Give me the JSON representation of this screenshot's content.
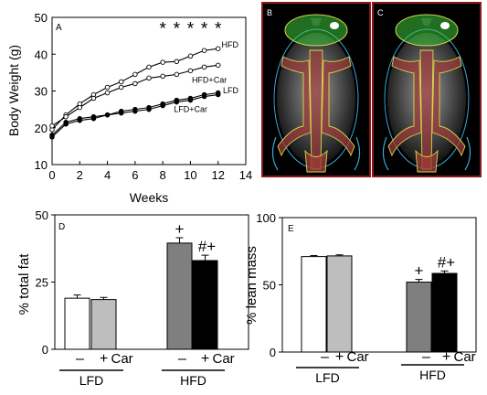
{
  "chart_data": [
    {
      "panel": "A",
      "type": "line",
      "xlabel": "Weeks",
      "ylabel": "Body Weight (g)",
      "xlim": [
        0,
        14
      ],
      "ylim": [
        10,
        50
      ],
      "xticks": [
        0,
        2,
        4,
        6,
        8,
        10,
        12,
        14
      ],
      "yticks": [
        10,
        20,
        30,
        40,
        50
      ],
      "x": [
        0,
        1,
        2,
        3,
        4,
        5,
        6,
        7,
        8,
        9,
        10,
        11,
        12
      ],
      "series": [
        {
          "name": "HFD",
          "marker": "open-circle",
          "values": [
            19.5,
            23.5,
            26.5,
            29,
            31,
            32.5,
            34.5,
            36.5,
            37.8,
            38,
            39.5,
            41,
            41.5
          ]
        },
        {
          "name": "HFD+Car",
          "marker": "open-circle",
          "values": [
            20.5,
            23,
            25.5,
            28,
            29.5,
            31,
            32,
            33.5,
            34,
            34.5,
            35.5,
            36.5,
            37
          ]
        },
        {
          "name": "LFD",
          "marker": "filled-circle",
          "values": [
            18,
            21.5,
            22.5,
            23,
            23.5,
            24.5,
            25,
            25.5,
            26.5,
            27.5,
            28,
            29,
            29.5
          ]
        },
        {
          "name": "LFD+Car",
          "marker": "filled-circle",
          "values": [
            17.5,
            21,
            22,
            22.5,
            23.5,
            24,
            24.5,
            25,
            26,
            27,
            27.5,
            28.5,
            29
          ]
        }
      ],
      "significance": [
        {
          "x": 8,
          "label": "*"
        },
        {
          "x": 9,
          "label": "*"
        },
        {
          "x": 10,
          "label": "*"
        },
        {
          "x": 11,
          "label": "*"
        },
        {
          "x": 12,
          "label": "*"
        }
      ]
    },
    {
      "panel": "D",
      "type": "bar",
      "ylabel": "% total fat",
      "ylim": [
        0,
        50
      ],
      "yticks": [
        0,
        25,
        50
      ],
      "bars": [
        {
          "group": "LFD",
          "treatment": "–",
          "value": 19,
          "error": 1.2,
          "color": "#ffffff",
          "annotation": ""
        },
        {
          "group": "LFD",
          "treatment": "+",
          "value": 18.5,
          "error": 0.8,
          "color": "#bebebe",
          "annotation": ""
        },
        {
          "group": "HFD",
          "treatment": "–",
          "value": 39.5,
          "error": 2,
          "color": "#7f7f7f",
          "annotation": "+"
        },
        {
          "group": "HFD",
          "treatment": "+",
          "value": 33,
          "error": 2,
          "color": "#000000",
          "annotation": "#+"
        }
      ],
      "treatment_label": "Car",
      "groups": [
        "LFD",
        "HFD"
      ]
    },
    {
      "panel": "E",
      "type": "bar",
      "ylabel": "% lean mass",
      "ylim": [
        0,
        100
      ],
      "yticks": [
        0,
        50,
        100
      ],
      "bars": [
        {
          "group": "LFD",
          "treatment": "–",
          "value": 71,
          "error": 0.8,
          "color": "#ffffff",
          "annotation": ""
        },
        {
          "group": "LFD",
          "treatment": "+",
          "value": 71.5,
          "error": 0.8,
          "color": "#bebebe",
          "annotation": ""
        },
        {
          "group": "HFD",
          "treatment": "–",
          "value": 52,
          "error": 2,
          "color": "#7f7f7f",
          "annotation": "+"
        },
        {
          "group": "HFD",
          "treatment": "+",
          "value": 58.5,
          "error": 1.8,
          "color": "#000000",
          "annotation": "#+"
        }
      ],
      "treatment_label": "Car",
      "groups": [
        "LFD",
        "HFD"
      ]
    }
  ],
  "images": [
    {
      "panel": "B",
      "label": "B",
      "description_icon": "mouse-scan-icon"
    },
    {
      "panel": "C",
      "label": "C",
      "description_icon": "mouse-scan-icon"
    }
  ],
  "colors": {
    "image_border": "#8b1a1a",
    "fat_overlay": "#9c3b3b",
    "fat_outline": "#d9d94a",
    "head_roi": "#3cc83c",
    "body_outline": "#3aa8d8"
  }
}
